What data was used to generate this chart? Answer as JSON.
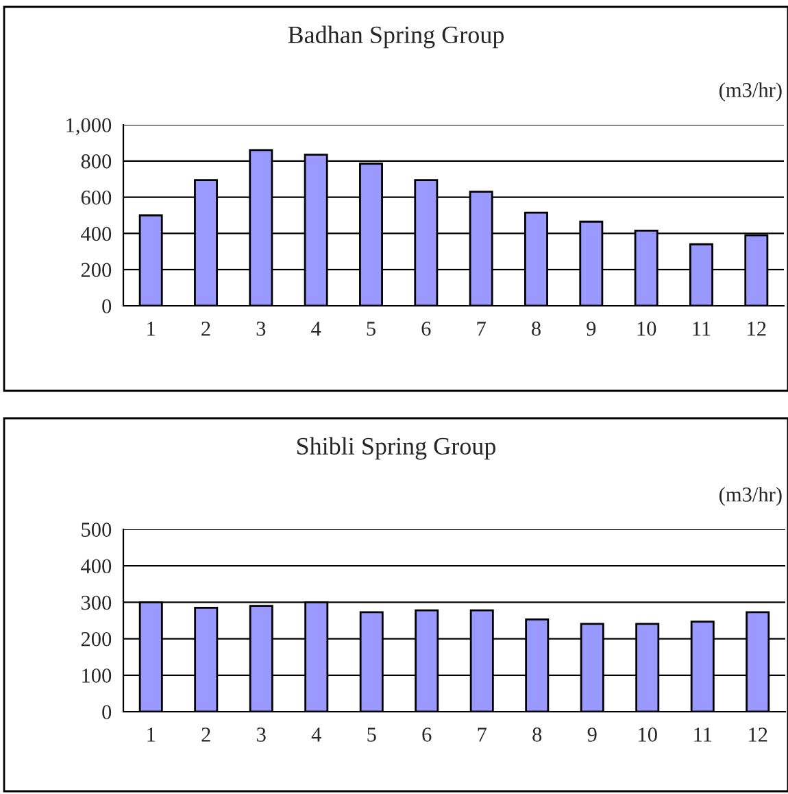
{
  "chart_data": [
    {
      "type": "bar",
      "title": "Badhan Spring Group",
      "annotations": [
        "(m3/hr)"
      ],
      "categories": [
        "1",
        "2",
        "3",
        "4",
        "5",
        "6",
        "7",
        "8",
        "9",
        "10",
        "11",
        "12"
      ],
      "values": [
        500,
        695,
        860,
        835,
        785,
        695,
        630,
        515,
        465,
        415,
        340,
        390
      ],
      "color": "#9999ff",
      "ylim": [
        0,
        1000
      ],
      "yticks": [
        0,
        200,
        400,
        600,
        800,
        {
          "value": 1000,
          "label": "1,000"
        }
      ],
      "grid": "y"
    },
    {
      "type": "bar",
      "title": "Shibli Spring Group",
      "annotations": [
        "(m3/hr)"
      ],
      "categories": [
        "1",
        "2",
        "3",
        "4",
        "5",
        "6",
        "7",
        "8",
        "9",
        "10",
        "11",
        "12"
      ],
      "values": [
        300,
        285,
        290,
        300,
        273,
        278,
        278,
        253,
        241,
        241,
        247,
        273
      ],
      "color": "#9999ff",
      "ylim": [
        0,
        500
      ],
      "yticks": [
        0,
        100,
        200,
        300,
        400,
        500
      ],
      "grid": "y"
    }
  ]
}
